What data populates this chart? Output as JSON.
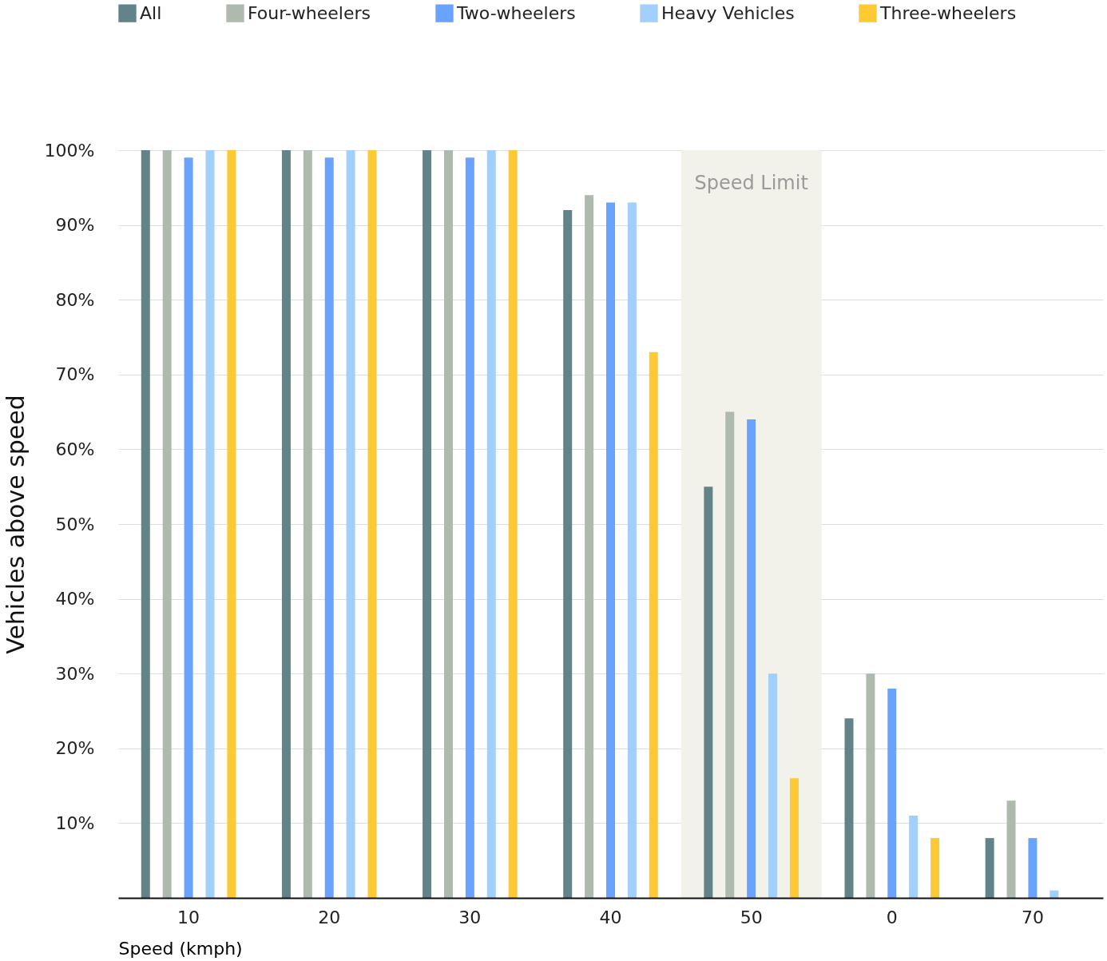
{
  "chart_data": {
    "type": "bar",
    "xlabel": "Speed (kmph)",
    "ylabel": "Vehicles above speed",
    "categories": [
      "10",
      "20",
      "30",
      "40",
      "50",
      "0",
      "70"
    ],
    "series": [
      {
        "name": "All",
        "color": "#62838a",
        "values": [
          100,
          100,
          100,
          92,
          55,
          24,
          8
        ]
      },
      {
        "name": "Four-wheelers",
        "color": "#aebaad",
        "values": [
          100,
          100,
          100,
          94,
          65,
          30,
          13
        ]
      },
      {
        "name": "Two-wheelers",
        "color": "#6aa3fd",
        "values": [
          99,
          99,
          99,
          93,
          64,
          28,
          8
        ]
      },
      {
        "name": "Heavy Vehicles",
        "color": "#a2cffc",
        "values": [
          100,
          100,
          100,
          93,
          30,
          11,
          1
        ]
      },
      {
        "name": "Three-wheelers",
        "color": "#fdc935",
        "values": [
          100,
          100,
          100,
          73,
          16,
          8,
          null
        ]
      }
    ],
    "ylim": [
      0,
      100
    ],
    "yticks": [
      {
        "value": 10,
        "label": "10%"
      },
      {
        "value": 20,
        "label": "20%"
      },
      {
        "value": 30,
        "label": "30%"
      },
      {
        "value": 40,
        "label": "40%"
      },
      {
        "value": 50,
        "label": "50%"
      },
      {
        "value": 60,
        "label": "60%"
      },
      {
        "value": 70,
        "label": "70%"
      },
      {
        "value": 80,
        "label": "80%"
      },
      {
        "value": 90,
        "label": "90%"
      },
      {
        "value": 100,
        "label": "100%"
      }
    ],
    "bands": [
      {
        "axis": "x",
        "from": "50",
        "to": "50",
        "label": "Speed Limit",
        "color": "#f2f1ea"
      }
    ],
    "grid": "y",
    "legend": "top left"
  }
}
